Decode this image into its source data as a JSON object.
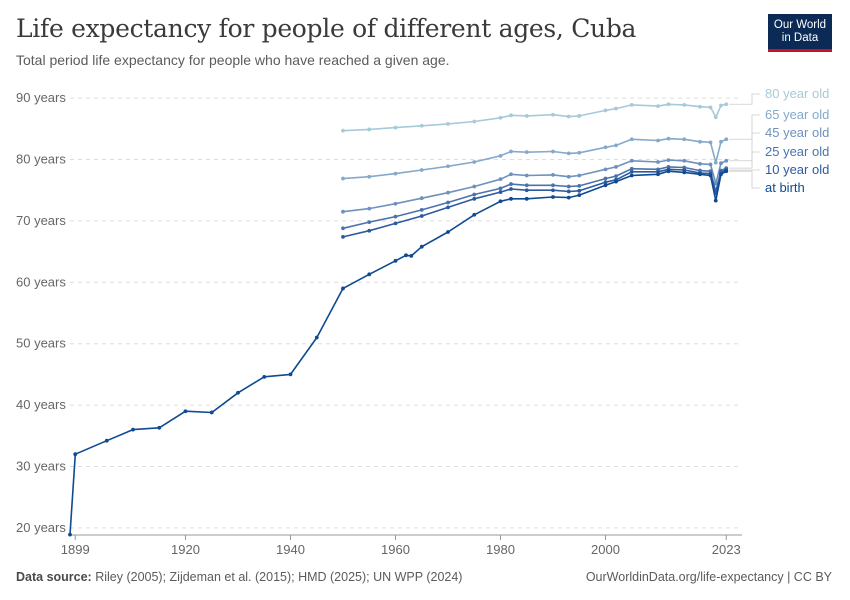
{
  "header": {
    "title": "Life expectancy for people of different ages, Cuba",
    "subtitle": "Total period life expectancy for people who have reached a given age.",
    "logo_line1": "Our World",
    "logo_line2": "in Data"
  },
  "footer": {
    "source_label": "Data source:",
    "source_text": " Riley (2005); Zijdeman et al. (2015); HMD (2025); UN WPP (2024)",
    "url": "OurWorldinData.org/life-expectancy | CC BY"
  },
  "colors": {
    "at_birth": "#0f4a92",
    "10_year_old": "#2d5a9f",
    "25_year_old": "#4a73ad",
    "45_year_old": "#6e91be",
    "65_year_old": "#84a9cb",
    "80_year_old": "#a6cad8",
    "grid": "#dddddd",
    "text": "#666666"
  },
  "chart_data": {
    "type": "line",
    "xlim": [
      1898,
      2026
    ],
    "ylim": [
      19,
      91
    ],
    "x_ticks": [
      1899,
      1920,
      1940,
      1960,
      1980,
      2000,
      2023
    ],
    "x_tick_labels": [
      "1899",
      "1920",
      "1940",
      "1960",
      "1980",
      "2000",
      "2023"
    ],
    "y_ticks": [
      20,
      30,
      40,
      50,
      60,
      70,
      80,
      90
    ],
    "y_tick_labels": [
      "20 years",
      "30 years",
      "40 years",
      "50 years",
      "60 years",
      "70 years",
      "80 years",
      "90 years"
    ],
    "grid": "horizontal dashed",
    "legend": "right (labels at line ends)",
    "series": [
      {
        "name": "80 year old",
        "color_key": "80_year_old",
        "x": [
          1950,
          1955,
          1960,
          1965,
          1970,
          1975,
          1980,
          1982,
          1985,
          1990,
          1993,
          1995,
          2000,
          2002,
          2005,
          2010,
          2012,
          2015,
          2018,
          2020,
          2021,
          2022,
          2023
        ],
        "y": [
          84.7,
          84.9,
          85.2,
          85.5,
          85.8,
          86.2,
          86.8,
          87.2,
          87.1,
          87.3,
          87.0,
          87.1,
          88.0,
          88.3,
          88.9,
          88.7,
          89.0,
          88.9,
          88.6,
          88.5,
          86.9,
          88.8,
          89.0
        ]
      },
      {
        "name": "65 year old",
        "color_key": "65_year_old",
        "x": [
          1950,
          1955,
          1960,
          1965,
          1970,
          1975,
          1980,
          1982,
          1985,
          1990,
          1993,
          1995,
          2000,
          2002,
          2005,
          2010,
          2012,
          2015,
          2018,
          2020,
          2021,
          2022,
          2023
        ],
        "y": [
          76.9,
          77.2,
          77.7,
          78.3,
          78.9,
          79.6,
          80.6,
          81.3,
          81.2,
          81.3,
          81.0,
          81.1,
          82.0,
          82.3,
          83.3,
          83.1,
          83.4,
          83.3,
          82.9,
          82.8,
          79.5,
          82.9,
          83.3
        ]
      },
      {
        "name": "45 year old",
        "color_key": "45_year_old",
        "x": [
          1950,
          1955,
          1960,
          1965,
          1970,
          1975,
          1980,
          1982,
          1985,
          1990,
          1993,
          1995,
          2000,
          2002,
          2005,
          2010,
          2012,
          2015,
          2018,
          2020,
          2021,
          2022,
          2023
        ],
        "y": [
          71.5,
          72.0,
          72.8,
          73.7,
          74.6,
          75.6,
          76.8,
          77.6,
          77.4,
          77.5,
          77.2,
          77.4,
          78.4,
          78.8,
          79.8,
          79.6,
          79.9,
          79.8,
          79.3,
          79.2,
          76.1,
          79.4,
          79.8
        ]
      },
      {
        "name": "25 year old",
        "color_key": "25_year_old",
        "x": [
          1950,
          1955,
          1960,
          1965,
          1970,
          1975,
          1980,
          1982,
          1985,
          1990,
          1993,
          1995,
          2000,
          2002,
          2005,
          2010,
          2012,
          2015,
          2018,
          2020,
          2021,
          2022,
          2023
        ],
        "y": [
          68.8,
          69.8,
          70.7,
          71.8,
          73.0,
          74.3,
          75.3,
          76.0,
          75.8,
          75.8,
          75.6,
          75.7,
          76.9,
          77.3,
          78.5,
          78.4,
          78.8,
          78.7,
          78.2,
          78.1,
          74.8,
          78.2,
          78.6
        ]
      },
      {
        "name": "10 year old",
        "color_key": "10_year_old",
        "x": [
          1950,
          1955,
          1960,
          1965,
          1970,
          1975,
          1980,
          1982,
          1985,
          1990,
          1993,
          1995,
          2000,
          2002,
          2005,
          2010,
          2012,
          2015,
          2018,
          2020,
          2021,
          2022,
          2023
        ],
        "y": [
          67.4,
          68.4,
          69.6,
          70.8,
          72.2,
          73.6,
          74.7,
          75.2,
          75.0,
          75.0,
          74.8,
          74.9,
          76.3,
          76.7,
          78.0,
          78.0,
          78.4,
          78.3,
          77.8,
          77.7,
          74.5,
          77.9,
          78.3
        ]
      },
      {
        "name": "at birth",
        "color_key": "at_birth",
        "x": [
          1898,
          1899,
          1905,
          1910,
          1915,
          1920,
          1925,
          1930,
          1935,
          1940,
          1945,
          1950,
          1955,
          1960,
          1962,
          1963,
          1965,
          1970,
          1975,
          1980,
          1982,
          1985,
          1990,
          1993,
          1995,
          2000,
          2002,
          2005,
          2010,
          2012,
          2015,
          2018,
          2020,
          2021,
          2022,
          2023
        ],
        "y": [
          18.9,
          32.0,
          34.2,
          36.0,
          36.3,
          39.0,
          38.8,
          42.0,
          44.6,
          45.0,
          51.0,
          59.0,
          61.3,
          63.5,
          64.4,
          64.3,
          65.8,
          68.2,
          71.0,
          73.2,
          73.6,
          73.6,
          73.9,
          73.8,
          74.2,
          75.8,
          76.4,
          77.4,
          77.6,
          78.1,
          77.9,
          77.6,
          77.4,
          73.3,
          77.6,
          78.1
        ]
      }
    ]
  }
}
